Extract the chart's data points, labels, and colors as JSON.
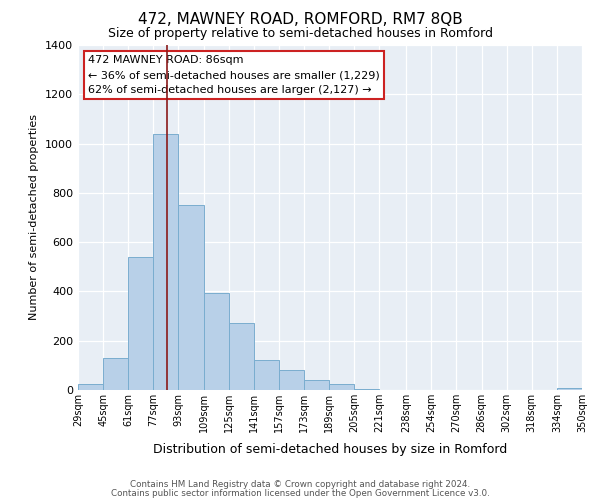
{
  "title": "472, MAWNEY ROAD, ROMFORD, RM7 8QB",
  "subtitle": "Size of property relative to semi-detached houses in Romford",
  "xlabel": "Distribution of semi-detached houses by size in Romford",
  "ylabel": "Number of semi-detached properties",
  "bin_labels": [
    "29sqm",
    "45sqm",
    "61sqm",
    "77sqm",
    "93sqm",
    "109sqm",
    "125sqm",
    "141sqm",
    "157sqm",
    "173sqm",
    "189sqm",
    "205sqm",
    "221sqm",
    "238sqm",
    "254sqm",
    "270sqm",
    "286sqm",
    "302sqm",
    "318sqm",
    "334sqm",
    "350sqm"
  ],
  "bin_edges": [
    29,
    45,
    61,
    77,
    93,
    109,
    125,
    141,
    157,
    173,
    189,
    205,
    221,
    238,
    254,
    270,
    286,
    302,
    318,
    334,
    350
  ],
  "bar_heights": [
    25,
    130,
    540,
    1040,
    750,
    395,
    270,
    120,
    80,
    40,
    25,
    5,
    0,
    0,
    0,
    0,
    0,
    0,
    0,
    10
  ],
  "bar_color": "#b8d0e8",
  "bar_edge_color": "#7aadcf",
  "property_size": 86,
  "property_line_color": "#8b1a1a",
  "annotation_title": "472 MAWNEY ROAD: 86sqm",
  "annotation_line1": "← 36% of semi-detached houses are smaller (1,229)",
  "annotation_line2": "62% of semi-detached houses are larger (2,127) →",
  "annotation_box_facecolor": "#ffffff",
  "annotation_box_edgecolor": "#cc2222",
  "ylim": [
    0,
    1400
  ],
  "yticks": [
    0,
    200,
    400,
    600,
    800,
    1000,
    1200,
    1400
  ],
  "footer1": "Contains HM Land Registry data © Crown copyright and database right 2024.",
  "footer2": "Contains public sector information licensed under the Open Government Licence v3.0.",
  "fig_bg_color": "#ffffff",
  "plot_bg_color": "#e8eef5",
  "grid_color": "#ffffff",
  "title_fontsize": 11,
  "subtitle_fontsize": 9,
  "ylabel_fontsize": 8,
  "xlabel_fontsize": 9
}
